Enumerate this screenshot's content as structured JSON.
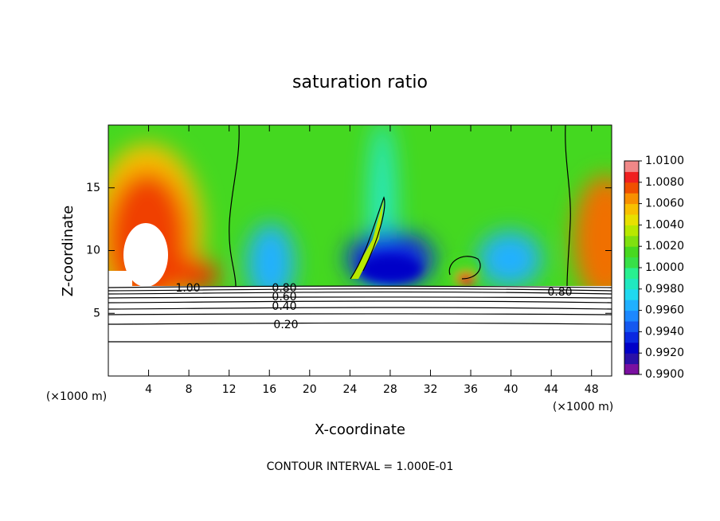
{
  "chart_data": {
    "type": "contour",
    "title": "saturation ratio",
    "x_label": "X-coordinate",
    "y_label": "Z-coordinate",
    "x_unit": "(×1000 m)",
    "y_unit": "(×1000 m)",
    "xlim": [
      0,
      50
    ],
    "xticks": [
      4,
      8,
      12,
      16,
      20,
      24,
      28,
      32,
      36,
      40,
      44,
      48
    ],
    "ylim": [
      0,
      20
    ],
    "yticks": [
      5,
      10,
      15
    ],
    "contour_labels": [
      "1.00",
      "0.80",
      "0.60",
      "0.40",
      "0.20",
      "0.80"
    ],
    "footer": "CONTOUR INTERVAL = 1.000E-01",
    "colorbar": {
      "lim": [
        0.99,
        1.01
      ],
      "ticks": [
        {
          "value": 0.99,
          "label": "0.9900"
        },
        {
          "value": 0.992,
          "label": "0.9920"
        },
        {
          "value": 0.994,
          "label": "0.9940"
        },
        {
          "value": 0.996,
          "label": "0.9960"
        },
        {
          "value": 0.998,
          "label": "0.9980"
        },
        {
          "value": 1.0,
          "label": "1.0000"
        },
        {
          "value": 1.002,
          "label": "1.0020"
        },
        {
          "value": 1.004,
          "label": "1.0040"
        },
        {
          "value": 1.006,
          "label": "1.0060"
        },
        {
          "value": 1.008,
          "label": "1.0080"
        },
        {
          "value": 1.01,
          "label": "1.0100"
        }
      ],
      "colors": [
        "#7a10a0",
        "#2a10a8",
        "#0000c8",
        "#0a28e0",
        "#1458f0",
        "#1c88ff",
        "#20b0ff",
        "#20d8f0",
        "#20e8c0",
        "#28f090",
        "#38e048",
        "#48d820",
        "#80e010",
        "#b8e800",
        "#e8e000",
        "#f8c000",
        "#f89000",
        "#f05000",
        "#f02020",
        "#f08888"
      ]
    }
  }
}
